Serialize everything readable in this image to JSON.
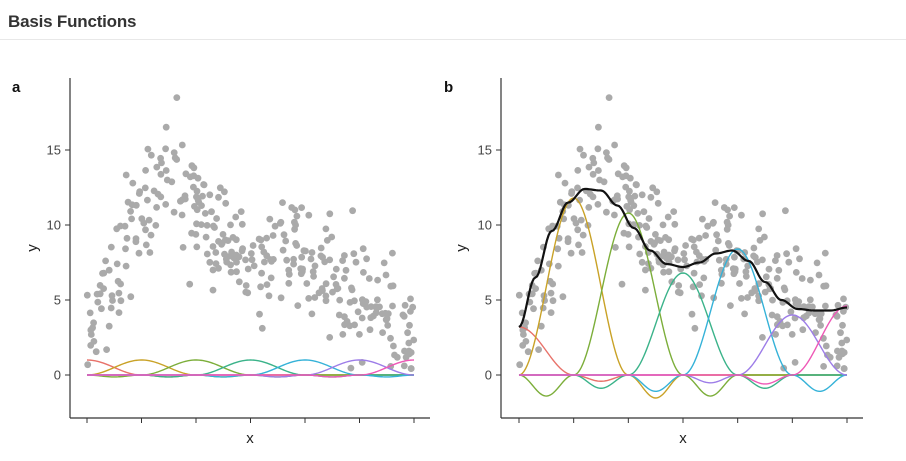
{
  "page": {
    "title": "Basis Functions"
  },
  "chart_data": [
    {
      "type": "scatter",
      "panel_label": "a",
      "xlabel": "x",
      "ylabel": "y",
      "xlim": [
        0,
        1
      ],
      "ylim": [
        -2.8,
        19.5
      ],
      "yticks": [
        0,
        5,
        10,
        15
      ],
      "x_ticks_unlabeled": [
        0,
        0.1667,
        0.3333,
        0.5,
        0.6667,
        0.8333,
        1
      ],
      "grid": false,
      "points_color": "#aaaaaa",
      "points_trend": {
        "description_source": "estimated from visible scatter cloud",
        "x": [
          0.0,
          0.08,
          0.16,
          0.22,
          0.27,
          0.32,
          0.38,
          0.45,
          0.52,
          0.58,
          0.62,
          0.68,
          0.74,
          0.8,
          0.86,
          0.92,
          1.0
        ],
        "y": [
          3.5,
          6.5,
          10.5,
          13.0,
          13.5,
          12.0,
          10.0,
          8.3,
          7.4,
          7.6,
          8.5,
          7.7,
          6.0,
          4.8,
          4.6,
          4.6,
          3.0
        ]
      },
      "basis_peak": 1.0,
      "series": [
        {
          "name": "",
          "color": "#e8726a",
          "center": 0.0
        },
        {
          "name": "",
          "color": "#c9a227",
          "center": 0.1667
        },
        {
          "name": "",
          "color": "#7cae3a",
          "center": 0.3333
        },
        {
          "name": "",
          "color": "#3bb38a",
          "center": 0.5
        },
        {
          "name": "",
          "color": "#35b2d8",
          "center": 0.6667
        },
        {
          "name": "",
          "color": "#9d7de8",
          "center": 0.8333
        },
        {
          "name": "",
          "color": "#ee58b6",
          "center": 1.0
        }
      ]
    },
    {
      "type": "scatter",
      "panel_label": "b",
      "xlabel": "x",
      "ylabel": "y",
      "xlim": [
        0,
        1
      ],
      "ylim": [
        -2.8,
        19.5
      ],
      "yticks": [
        0,
        5,
        10,
        15
      ],
      "x_ticks_unlabeled": [
        0,
        0.1667,
        0.3333,
        0.5,
        0.6667,
        0.8333,
        1
      ],
      "grid": false,
      "points_color": "#aaaaaa",
      "fit_line": {
        "color": "#111111",
        "x": [
          0.0,
          0.05,
          0.1,
          0.15,
          0.2,
          0.25,
          0.3,
          0.35,
          0.4,
          0.45,
          0.5,
          0.55,
          0.6,
          0.65,
          0.7,
          0.75,
          0.8,
          0.85,
          0.9,
          0.95,
          1.0
        ],
        "y": [
          3.2,
          6.5,
          9.6,
          11.5,
          12.4,
          12.3,
          11.3,
          9.8,
          8.3,
          7.4,
          7.2,
          7.5,
          8.1,
          8.3,
          7.6,
          6.2,
          5.0,
          4.4,
          4.3,
          4.3,
          4.5
        ]
      },
      "series": [
        {
          "name": "",
          "color": "#e8726a",
          "weight": 3.2
        },
        {
          "name": "",
          "color": "#c9a227",
          "weight": 11.8
        },
        {
          "name": "",
          "color": "#7cae3a",
          "weight": 10.8
        },
        {
          "name": "",
          "color": "#3bb38a",
          "weight": 6.8
        },
        {
          "name": "",
          "color": "#35b2d8",
          "weight": 8.4
        },
        {
          "name": "",
          "color": "#9d7de8",
          "weight": 4.0
        },
        {
          "name": "",
          "color": "#ee58b6",
          "weight": 4.6
        }
      ]
    }
  ]
}
